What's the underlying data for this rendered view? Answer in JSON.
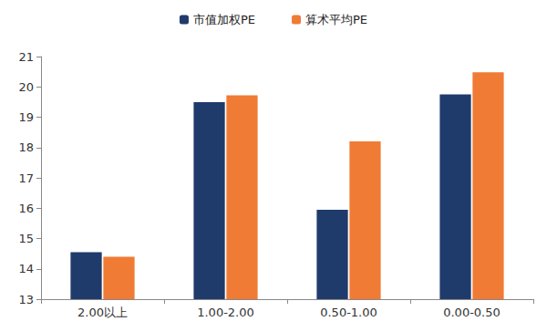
{
  "chart_data": {
    "type": "bar",
    "categories": [
      "2.00以上",
      "1.00-2.00",
      "0.50-1.00",
      "0.00-0.50"
    ],
    "series": [
      {
        "name": "市值加权PE",
        "color": "#1f3b6b",
        "values": [
          14.55,
          19.5,
          15.95,
          19.75
        ]
      },
      {
        "name": "算术平均PE",
        "color": "#f07b35",
        "values": [
          14.4,
          19.72,
          18.2,
          20.48
        ]
      }
    ],
    "ylim": [
      13,
      21
    ],
    "yticks": [
      13,
      14,
      15,
      16,
      17,
      18,
      19,
      20,
      21
    ],
    "grid": false,
    "legend": "top"
  }
}
